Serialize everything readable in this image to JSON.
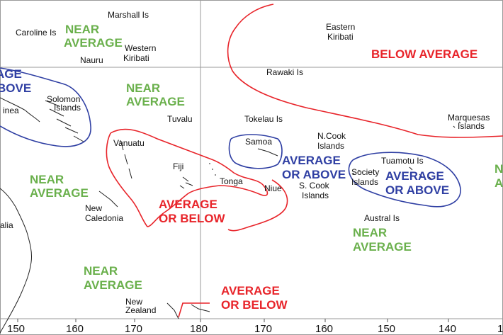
{
  "colors": {
    "near": "#6ab04c",
    "above": "#2f3fa3",
    "below": "#e8242a",
    "grid": "#9a9a9a",
    "land": "#222222"
  },
  "places": {
    "marshall": "Marshall Is",
    "caroline": "Caroline Is",
    "nauru": "Nauru",
    "western_kiribati_1": "Western",
    "western_kiribati_2": "Kiribati",
    "solomon_1": "Solomon",
    "solomon_2": "Islands",
    "guinea": "inea",
    "tuvalu": "Tuvalu",
    "vanuatu": "Vanuatu",
    "fiji": "Fiji",
    "tonga": "Tonga",
    "niue": "Niue",
    "samoa": "Samoa",
    "tokelau": "Tokelau Is",
    "rawaki": "Rawaki Is",
    "eastern_kiribati_1": "Eastern",
    "eastern_kiribati_2": "Kiribati",
    "ncook_1": "N.Cook",
    "ncook_2": "Islands",
    "scook_1": "S. Cook",
    "scook_2": "Islands",
    "society_1": "Society",
    "society_2": "Islands",
    "tuamotu": "Tuamotu Is",
    "marquesas_1": "Marquesas",
    "marquesas_2": "Islands",
    "austral": "Austral Is",
    "new_caledonia_1": "New",
    "new_caledonia_2": "Caledonia",
    "australia": "alia",
    "new_zealand_1": "New",
    "new_zealand_2": "Zealand"
  },
  "zones": {
    "z1_1": "NEAR",
    "z1_2": "AVERAGE",
    "z2_1": "AGE",
    "z2_2": "BOVE",
    "z3_1": "NEAR",
    "z3_2": "AVERAGE",
    "z4_1": "BELOW AVERAGE",
    "z5_1": "NEAR",
    "z5_2": "AVERAGE",
    "z6_1": "AVERAGE",
    "z6_2": "OR BELOW",
    "z7_1": "AVERAGE",
    "z7_2": "OR ABOVE",
    "z8_1": "AVERAGE",
    "z8_2": "OR ABOVE",
    "z9_1": "N",
    "z9_2": "A",
    "z10_1": "NEAR",
    "z10_2": "AVERAGE",
    "z11_1": "NEAR",
    "z11_2": "AVERAGE",
    "z12_1": "AVERAGE",
    "z12_2": "OR BELOW"
  },
  "axis": {
    "x_ticks": [
      "150",
      "160",
      "170",
      "180",
      "170",
      "160",
      "150",
      "140",
      "1"
    ]
  }
}
